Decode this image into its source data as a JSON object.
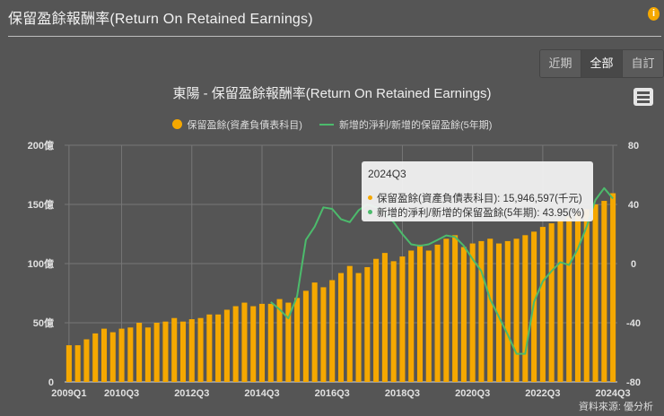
{
  "header": {
    "title": "保留盈餘報酬率(Return On Retained Earnings)",
    "info_icon": "i"
  },
  "range_buttons": [
    {
      "label": "近期",
      "active": false
    },
    {
      "label": "全部",
      "active": true
    },
    {
      "label": "自訂",
      "active": false
    }
  ],
  "menu_icon": "hamburger-menu-icon",
  "source": "資料來源: 優分析",
  "tooltip": {
    "date": "2024Q3",
    "row1": "保留盈餘(資產負債表科目): 15,946,597(千元)",
    "row2": "新增的淨利/新增的保留盈餘(5年期): 43.95(%)"
  },
  "colors": {
    "bar": "#f5a800",
    "line": "#4cbb6c",
    "background": "#555555",
    "grid": "#777777"
  },
  "chart_data": {
    "type": "bar+line",
    "title": "東陽 - 保留盈餘報酬率(Return On Retained Earnings)",
    "xlabel": "",
    "ylabel_left": "億",
    "ylabel_right": "%",
    "ylim_left": [
      0,
      200
    ],
    "ylim_right": [
      -80,
      80
    ],
    "y_ticks_left": [
      "0",
      "50億",
      "100億",
      "150億",
      "200億"
    ],
    "y_ticks_right": [
      "-80",
      "-40",
      "0",
      "40",
      "80"
    ],
    "x_ticks": [
      "2009Q1",
      "2010Q3",
      "2012Q3",
      "2014Q3",
      "2016Q3",
      "2018Q3",
      "2020Q3",
      "2022Q3",
      "2024Q3"
    ],
    "grid": true,
    "legend_position": "top",
    "categories": [
      "2009Q1",
      "2009Q2",
      "2009Q3",
      "2009Q4",
      "2010Q1",
      "2010Q2",
      "2010Q3",
      "2010Q4",
      "2011Q1",
      "2011Q2",
      "2011Q3",
      "2011Q4",
      "2012Q1",
      "2012Q2",
      "2012Q3",
      "2012Q4",
      "2013Q1",
      "2013Q2",
      "2013Q3",
      "2013Q4",
      "2014Q1",
      "2014Q2",
      "2014Q3",
      "2014Q4",
      "2015Q1",
      "2015Q2",
      "2015Q3",
      "2015Q4",
      "2016Q1",
      "2016Q2",
      "2016Q3",
      "2016Q4",
      "2017Q1",
      "2017Q2",
      "2017Q3",
      "2017Q4",
      "2018Q1",
      "2018Q2",
      "2018Q3",
      "2018Q4",
      "2019Q1",
      "2019Q2",
      "2019Q3",
      "2019Q4",
      "2020Q1",
      "2020Q2",
      "2020Q3",
      "2020Q4",
      "2021Q1",
      "2021Q2",
      "2021Q3",
      "2021Q4",
      "2022Q1",
      "2022Q2",
      "2022Q3",
      "2022Q4",
      "2023Q1",
      "2023Q2",
      "2023Q3",
      "2023Q4",
      "2024Q1",
      "2024Q2",
      "2024Q3"
    ],
    "series": [
      {
        "name": "保留盈餘(資產負債表科目)",
        "type": "bar",
        "axis": "left",
        "unit": "億",
        "values": [
          31,
          31,
          36,
          41,
          45,
          42,
          45,
          46,
          50,
          46,
          50,
          51,
          54,
          51,
          53,
          54,
          57,
          57,
          61,
          64,
          67,
          64,
          66,
          66,
          70,
          67,
          71,
          77,
          84,
          80,
          86,
          92,
          98,
          92,
          97,
          104,
          109,
          102,
          106,
          111,
          116,
          111,
          116,
          121,
          124,
          114,
          117,
          119,
          121,
          117,
          119,
          121,
          124,
          127,
          131,
          134,
          137,
          140,
          143,
          146,
          150,
          153,
          159.47
        ]
      },
      {
        "name": "新增的淨利/新增的保留盈餘(5年期)",
        "type": "line",
        "axis": "right",
        "unit": "%",
        "values": [
          null,
          null,
          null,
          null,
          null,
          null,
          null,
          null,
          null,
          null,
          null,
          null,
          null,
          null,
          null,
          null,
          null,
          null,
          null,
          null,
          null,
          null,
          null,
          -26,
          -31,
          -37,
          -22,
          16,
          25,
          38,
          37,
          30,
          28,
          36,
          40,
          38,
          34,
          28,
          20,
          13,
          12,
          13,
          16,
          19,
          18,
          12,
          3,
          -5,
          -24,
          -36,
          -48,
          -61,
          -61,
          -26,
          -12,
          -5,
          1,
          -1,
          10,
          25,
          43,
          51,
          43.95
        ]
      }
    ],
    "legend": [
      "保留盈餘(資產負債表科目)",
      "新增的淨利/新增的保留盈餘(5年期)"
    ]
  }
}
